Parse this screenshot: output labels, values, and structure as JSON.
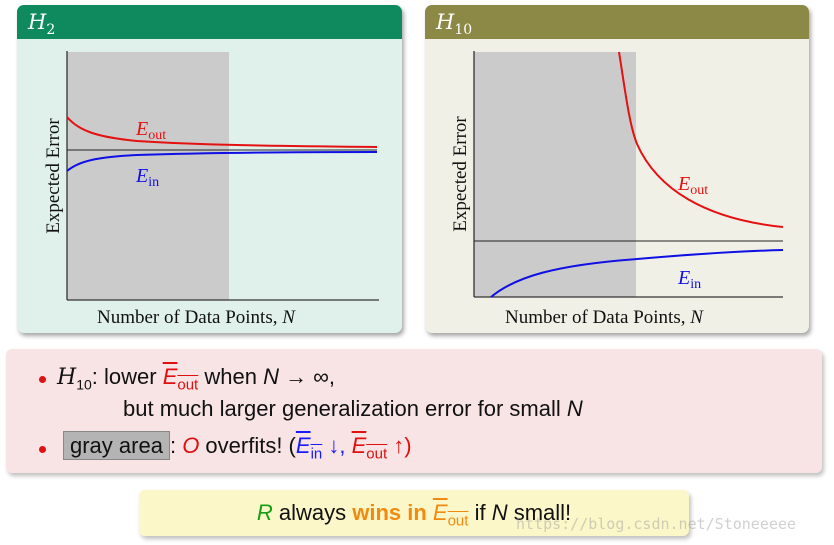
{
  "left_panel": {
    "title_symbol": "H",
    "title_sub": "2",
    "header_color": "#0e8a5e",
    "ylabel": "Expected Error",
    "xlabel": "Number of Data Points,",
    "xlabel_var": "N",
    "eout_label": "E",
    "eout_sub": "out",
    "ein_label": "E",
    "ein_sub": "in"
  },
  "right_panel": {
    "title_symbol": "H",
    "title_sub": "10",
    "header_color": "#8c8846",
    "ylabel": "Expected Error",
    "xlabel": "Number of Data Points,",
    "xlabel_var": "N",
    "eout_label": "E",
    "eout_sub": "out",
    "ein_label": "E",
    "ein_sub": "in"
  },
  "bullets": {
    "b1_h": "H",
    "b1_hsub": "10",
    "b1_text1": ": lower ",
    "b1_E": "E",
    "b1_Esub": "out",
    "b1_text2": " when ",
    "b1_N": "N",
    "b1_arrow": " → ∞,",
    "b1_line2a": "but much larger generalization error for small ",
    "b1_line2N": "N",
    "b2_gray": "gray area",
    "b2_colon": ": ",
    "b2_O": "O",
    "b2_text": " overfits! (",
    "b2_Ein": "E",
    "b2_Einsub": "in",
    "b2_down": " ↓, ",
    "b2_Eout": "E",
    "b2_Eoutsub": "out",
    "b2_up": " ↑)"
  },
  "bottom": {
    "R": "R",
    "text1": " always ",
    "wins": "wins in ",
    "E": "E",
    "Esub": "out",
    "text2": " if ",
    "N": "N",
    "text3": " small!"
  },
  "watermark": "https://blog.csdn.net/Stoneeeee"
}
